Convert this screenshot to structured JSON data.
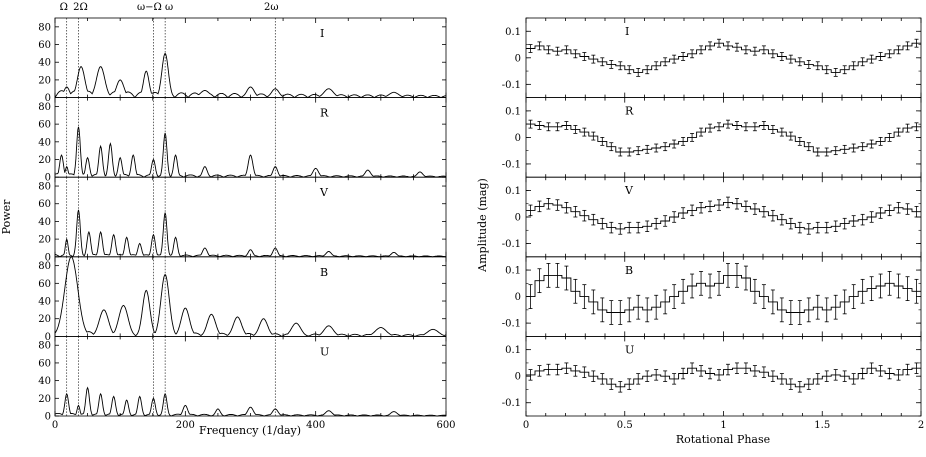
{
  "left_panel": {
    "xlabel": "Frequency (1/day)",
    "ylabel": "Power",
    "xlim": [
      0,
      600
    ],
    "ylim": [
      0,
      90
    ],
    "x_ticks": [
      0,
      200,
      400,
      600
    ],
    "y_ticks": [
      0,
      20,
      40,
      60,
      80
    ],
    "marker_lines": [
      {
        "freq": 18,
        "label": "Ω"
      },
      {
        "freq": 36,
        "label": "2Ω"
      },
      {
        "freq": 151,
        "label": "ω−Ω"
      },
      {
        "freq": 169,
        "label": "ω"
      },
      {
        "freq": 338,
        "label": "2ω"
      }
    ]
  },
  "right_panel": {
    "xlabel": "Rotational Phase",
    "ylabel": "Amplitude (mag)",
    "xlim": [
      0,
      2
    ],
    "ylim": [
      -0.15,
      0.15
    ],
    "x_ticks": [
      0,
      0.5,
      1,
      1.5,
      2
    ],
    "y_ticks": [
      -0.1,
      0,
      0.1
    ]
  },
  "bands": [
    "I",
    "R",
    "V",
    "B",
    "U"
  ],
  "chart_data": [
    {
      "type": "line",
      "name": "periodograms",
      "xlabel": "Frequency (1/day)",
      "ylabel": "Power",
      "xlim": [
        0,
        600
      ],
      "ylim": [
        0,
        90
      ],
      "series": [
        {
          "name": "I",
          "peaks": [
            [
              18,
              12,
              6
            ],
            [
              40,
              35,
              8
            ],
            [
              70,
              35,
              9
            ],
            [
              100,
              20,
              8
            ],
            [
              140,
              30,
              6
            ],
            [
              169,
              50,
              7
            ],
            [
              230,
              8,
              10
            ],
            [
              300,
              12,
              8
            ],
            [
              338,
              10,
              8
            ],
            [
              420,
              10,
              10
            ],
            [
              520,
              6,
              10
            ]
          ],
          "base": 8
        },
        {
          "name": "R",
          "peaks": [
            [
              10,
              25,
              4
            ],
            [
              18,
              12,
              3
            ],
            [
              36,
              57,
              4
            ],
            [
              50,
              22,
              4
            ],
            [
              70,
              35,
              4
            ],
            [
              85,
              38,
              4
            ],
            [
              100,
              22,
              4
            ],
            [
              120,
              25,
              4
            ],
            [
              151,
              20,
              4
            ],
            [
              169,
              50,
              4
            ],
            [
              185,
              25,
              4
            ],
            [
              230,
              12,
              5
            ],
            [
              300,
              25,
              5
            ],
            [
              338,
              12,
              5
            ],
            [
              400,
              10,
              6
            ],
            [
              480,
              8,
              6
            ],
            [
              560,
              6,
              6
            ]
          ],
          "base": 4
        },
        {
          "name": "V",
          "peaks": [
            [
              18,
              20,
              3
            ],
            [
              36,
              53,
              4
            ],
            [
              52,
              28,
              4
            ],
            [
              70,
              28,
              4
            ],
            [
              90,
              25,
              4
            ],
            [
              110,
              22,
              4
            ],
            [
              130,
              15,
              4
            ],
            [
              151,
              25,
              4
            ],
            [
              169,
              50,
              4
            ],
            [
              185,
              22,
              4
            ],
            [
              230,
              10,
              5
            ],
            [
              300,
              8,
              5
            ],
            [
              338,
              10,
              5
            ],
            [
              420,
              6,
              6
            ],
            [
              520,
              5,
              6
            ]
          ],
          "base": 3
        },
        {
          "name": "B",
          "peaks": [
            [
              25,
              90,
              14
            ],
            [
              75,
              30,
              10
            ],
            [
              105,
              35,
              10
            ],
            [
              140,
              52,
              8
            ],
            [
              169,
              70,
              9
            ],
            [
              200,
              32,
              9
            ],
            [
              240,
              25,
              9
            ],
            [
              280,
              22,
              9
            ],
            [
              320,
              20,
              9
            ],
            [
              370,
              15,
              10
            ],
            [
              420,
              12,
              10
            ],
            [
              500,
              10,
              12
            ],
            [
              580,
              8,
              12
            ]
          ],
          "base": 6
        },
        {
          "name": "U",
          "peaks": [
            [
              18,
              25,
              4
            ],
            [
              36,
              12,
              3
            ],
            [
              50,
              32,
              4
            ],
            [
              70,
              25,
              4
            ],
            [
              90,
              22,
              4
            ],
            [
              110,
              18,
              4
            ],
            [
              130,
              22,
              4
            ],
            [
              151,
              20,
              4
            ],
            [
              169,
              25,
              4
            ],
            [
              200,
              12,
              5
            ],
            [
              250,
              8,
              5
            ],
            [
              300,
              10,
              6
            ],
            [
              338,
              8,
              6
            ],
            [
              420,
              6,
              7
            ],
            [
              520,
              5,
              7
            ]
          ],
          "base": 3
        }
      ]
    },
    {
      "type": "line",
      "name": "phase_curves",
      "xlabel": "Rotational Phase",
      "ylabel": "Amplitude (mag)",
      "xlim": [
        0,
        2
      ],
      "ylim": [
        -0.15,
        0.15
      ],
      "series": [
        {
          "name": "I",
          "values": [
            0.035,
            0.045,
            0.03,
            0.025,
            0.03,
            0.015,
            0.005,
            -0.005,
            -0.015,
            -0.025,
            -0.03,
            -0.045,
            -0.055,
            -0.045,
            -0.03,
            -0.015,
            -0.005,
            0.005,
            0.015,
            0.03,
            0.045,
            0.055,
            0.045,
            0.04,
            0.03,
            0.025,
            0.03,
            0.015,
            0.005,
            -0.005,
            -0.015,
            -0.025,
            -0.03,
            -0.045,
            -0.055,
            -0.045,
            -0.03,
            -0.015,
            -0.005,
            0.005,
            0.015,
            0.03,
            0.045,
            0.055
          ],
          "err": 0.015
        },
        {
          "name": "R",
          "values": [
            0.05,
            0.045,
            0.04,
            0.04,
            0.045,
            0.03,
            0.02,
            0.005,
            -0.015,
            -0.035,
            -0.055,
            -0.055,
            -0.05,
            -0.045,
            -0.04,
            -0.035,
            -0.025,
            -0.015,
            0.0,
            0.02,
            0.035,
            0.04,
            0.05,
            0.045,
            0.04,
            0.04,
            0.045,
            0.03,
            0.02,
            0.005,
            -0.015,
            -0.035,
            -0.055,
            -0.055,
            -0.05,
            -0.045,
            -0.04,
            -0.035,
            -0.025,
            -0.015,
            0.0,
            0.02,
            0.035,
            0.04
          ],
          "err": 0.015
        },
        {
          "name": "V",
          "values": [
            0.025,
            0.04,
            0.05,
            0.045,
            0.035,
            0.02,
            0.005,
            -0.01,
            -0.025,
            -0.04,
            -0.045,
            -0.04,
            -0.04,
            -0.035,
            -0.025,
            -0.015,
            0.0,
            0.015,
            0.025,
            0.035,
            0.04,
            0.045,
            0.055,
            0.05,
            0.04,
            0.03,
            0.02,
            0.005,
            -0.01,
            -0.025,
            -0.04,
            -0.045,
            -0.04,
            -0.04,
            -0.035,
            -0.025,
            -0.015,
            -0.01,
            0.0,
            0.015,
            0.025,
            0.035,
            0.03,
            0.02
          ],
          "err": 0.02
        },
        {
          "name": "B",
          "values": [
            0.0,
            0.06,
            0.08,
            0.08,
            0.07,
            0.02,
            0.0,
            -0.02,
            -0.05,
            -0.06,
            -0.06,
            -0.05,
            -0.04,
            -0.05,
            -0.04,
            -0.02,
            0.0,
            0.02,
            0.04,
            0.05,
            0.04,
            0.05,
            0.08,
            0.08,
            0.07,
            0.02,
            0.0,
            -0.02,
            -0.05,
            -0.06,
            -0.06,
            -0.05,
            -0.04,
            -0.05,
            -0.04,
            -0.02,
            0.0,
            0.02,
            0.03,
            0.04,
            0.05,
            0.04,
            0.03,
            0.02
          ],
          "err": 0.045
        },
        {
          "name": "U",
          "values": [
            0.005,
            0.02,
            0.025,
            0.025,
            0.03,
            0.02,
            0.015,
            0.0,
            -0.01,
            -0.03,
            -0.04,
            -0.03,
            -0.01,
            0.0,
            0.005,
            0.0,
            -0.01,
            0.01,
            0.03,
            0.02,
            0.01,
            0.005,
            0.025,
            0.03,
            0.03,
            0.02,
            0.015,
            0.0,
            -0.01,
            -0.03,
            -0.04,
            -0.03,
            -0.01,
            0.0,
            0.005,
            0.0,
            -0.01,
            0.01,
            0.03,
            0.02,
            0.01,
            0.005,
            0.025,
            0.03
          ],
          "err": 0.02
        }
      ]
    }
  ]
}
